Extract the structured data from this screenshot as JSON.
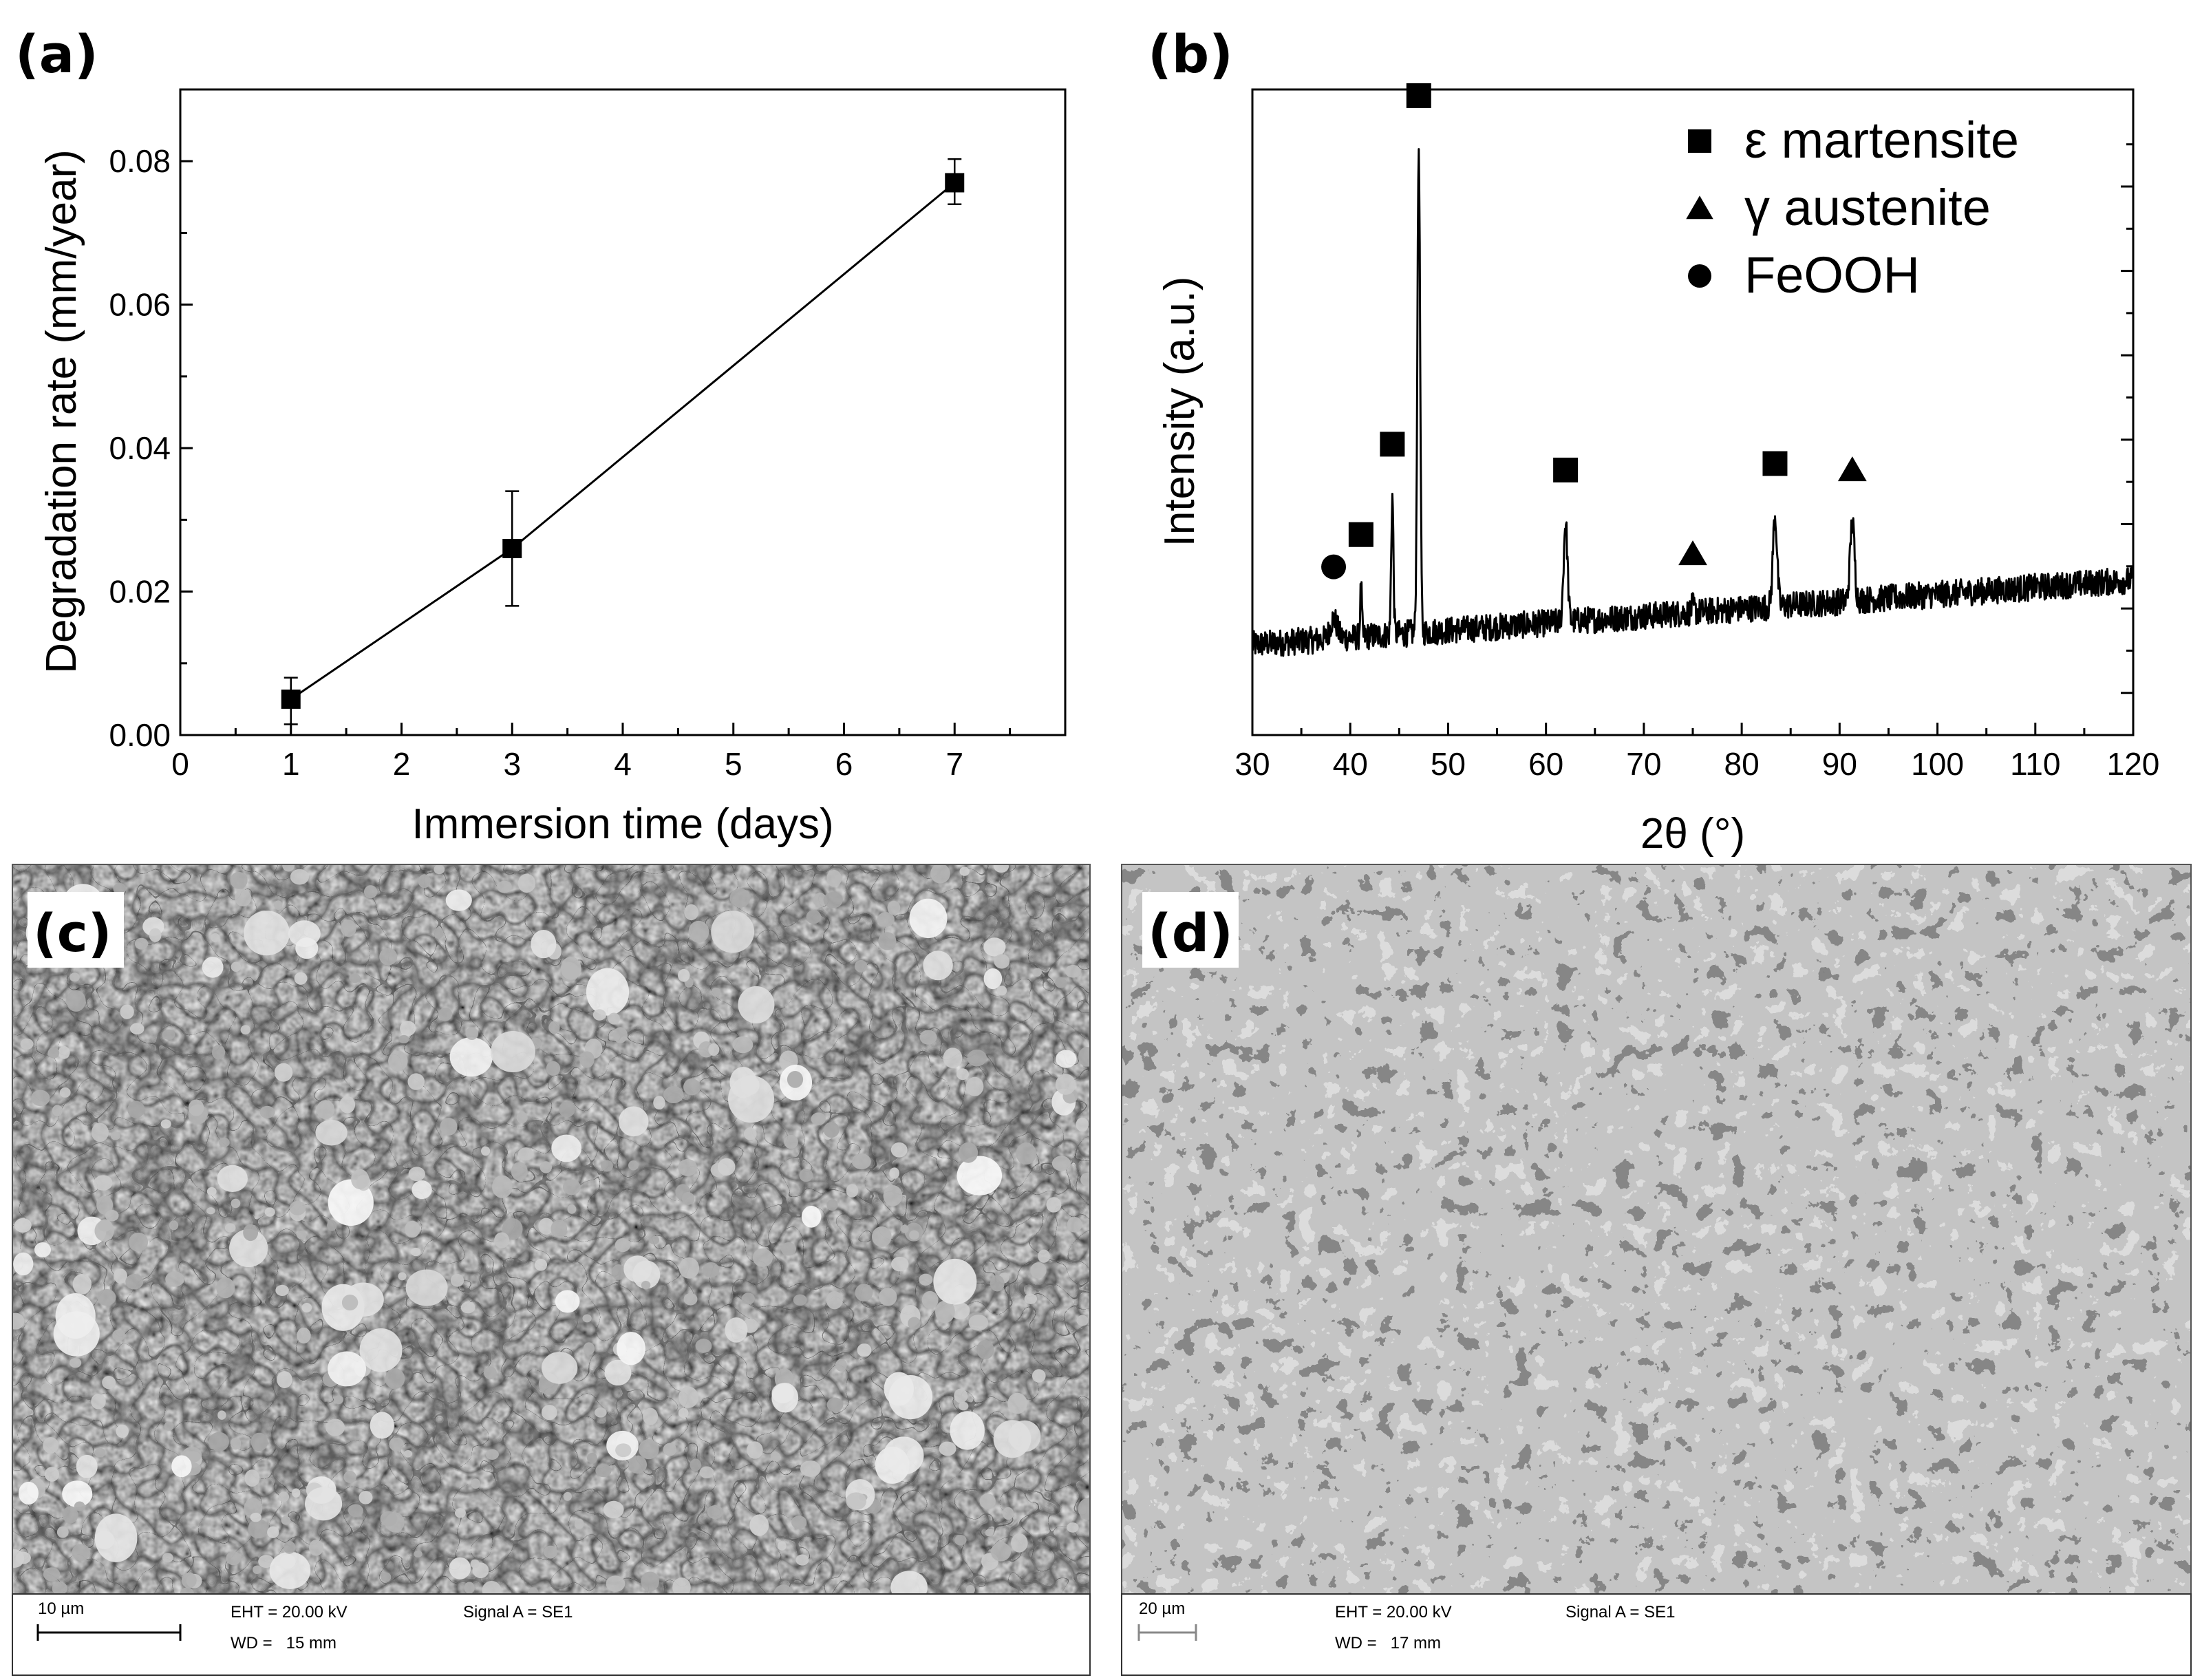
{
  "panels": {
    "a": "(a)",
    "b": "(b)",
    "c": "(c)",
    "d": "(d)"
  },
  "chart_data": [
    {
      "type": "line",
      "panel": "(a)",
      "xlabel": "Immersion time (days)",
      "ylabel": "Degradation rate (mm/year)",
      "xlim": [
        0,
        8
      ],
      "ylim": [
        0,
        0.09
      ],
      "x_ticks": [
        "0",
        "1",
        "2",
        "3",
        "4",
        "5",
        "6",
        "7"
      ],
      "y_ticks": [
        "0.00",
        "0.02",
        "0.04",
        "0.06",
        "0.08"
      ],
      "grid": false,
      "series": [
        {
          "marker": "square",
          "x": [
            1,
            3,
            7
          ],
          "y": [
            0.005,
            0.026,
            0.077
          ],
          "error_low": [
            0.0015,
            0.018,
            0.074
          ],
          "error_high": [
            0.008,
            0.034,
            0.0803
          ]
        }
      ]
    },
    {
      "type": "line",
      "panel": "(b)",
      "xlabel": "2θ (°)",
      "ylabel": "Intensity (a.u.)",
      "xlim": [
        30,
        120
      ],
      "ylim": [
        0,
        100
      ],
      "x_ticks": [
        "30",
        "40",
        "50",
        "60",
        "70",
        "80",
        "90",
        "100",
        "110",
        "120"
      ],
      "y_ticks_labeled": false,
      "grid": false,
      "legend_position": "top-right",
      "legend": [
        {
          "marker": "square",
          "label": "ε martensite"
        },
        {
          "marker": "triangle",
          "label": "γ austenite"
        },
        {
          "marker": "circle",
          "label": "FeOOH"
        }
      ],
      "peaks": [
        {
          "x": 38.3,
          "y": 22,
          "phase": "FeOOH"
        },
        {
          "x": 41.1,
          "y": 27,
          "phase": "ε martensite"
        },
        {
          "x": 44.3,
          "y": 41,
          "phase": "ε martensite"
        },
        {
          "x": 47.0,
          "y": 95,
          "phase": "ε martensite"
        },
        {
          "x": 62.0,
          "y": 37,
          "phase": "ε martensite"
        },
        {
          "x": 75.0,
          "y": 24,
          "phase": "γ austenite"
        },
        {
          "x": 83.4,
          "y": 38,
          "phase": "ε martensite"
        },
        {
          "x": 91.3,
          "y": 37,
          "phase": "γ austenite"
        }
      ],
      "baseline": {
        "x": [
          30,
          120
        ],
        "y": [
          14,
          24
        ]
      }
    }
  ],
  "sem": {
    "c": {
      "scale": "10 µm",
      "eht": "EHT = 20.00 kV",
      "wd": "WD =   15 mm",
      "signal": "Signal A = SE1"
    },
    "d": {
      "scale": "20 µm",
      "eht": "EHT = 20.00 kV",
      "wd": "WD =   17 mm",
      "signal": "Signal A = SE1"
    }
  }
}
